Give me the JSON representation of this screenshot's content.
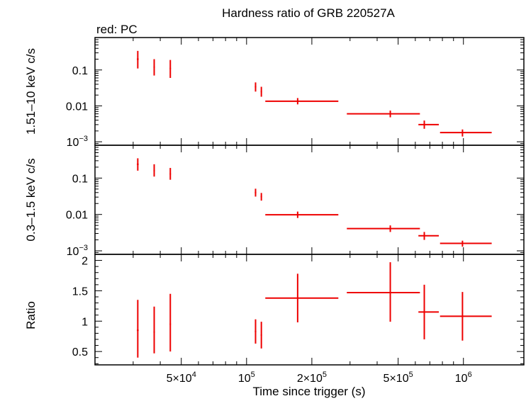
{
  "chart_data": {
    "type": "scatter",
    "title": "Hardness ratio of GRB 220527A",
    "subtitle": "red: PC",
    "xlabel": "Time since trigger (s)",
    "x_scale": "log",
    "xlim": [
      20000,
      1900000
    ],
    "x_ticks": [
      {
        "value": 50000,
        "base": "5×10",
        "exp": "4"
      },
      {
        "value": 100000,
        "base": "10",
        "exp": "5"
      },
      {
        "value": 200000,
        "base": "2×10",
        "exp": "5"
      },
      {
        "value": 500000,
        "base": "5×10",
        "exp": "5"
      },
      {
        "value": 1000000,
        "base": "10",
        "exp": "6"
      }
    ],
    "series_color": "#ee0000",
    "panels": [
      {
        "ylabel": "1.51–10 keV c/s",
        "y_scale": "log",
        "ylim": [
          0.0008,
          0.8
        ],
        "y_ticks": [
          {
            "value": 0.1,
            "label": "0.1"
          },
          {
            "value": 0.01,
            "label": "0.01"
          },
          {
            "value": 0.001,
            "label": "10",
            "exp": "−3"
          }
        ],
        "points": [
          {
            "x": 31500,
            "y": 0.2,
            "xerr": [
              300,
              300
            ],
            "yerr": [
              0.09,
              0.14
            ]
          },
          {
            "x": 37500,
            "y": 0.12,
            "xerr": [
              300,
              300
            ],
            "yerr": [
              0.05,
              0.08
            ]
          },
          {
            "x": 44500,
            "y": 0.11,
            "xerr": [
              300,
              300
            ],
            "yerr": [
              0.05,
              0.08
            ]
          },
          {
            "x": 110000,
            "y": 0.034,
            "xerr": [
              900,
              900
            ],
            "yerr": [
              0.009,
              0.011
            ]
          },
          {
            "x": 117000,
            "y": 0.025,
            "xerr": [
              800,
              800
            ],
            "yerr": [
              0.007,
              0.009
            ]
          },
          {
            "x": 172000,
            "y": 0.0135,
            "xerr": [
              50000,
              93000
            ],
            "yerr": [
              0.0025,
              0.003
            ]
          },
          {
            "x": 460000,
            "y": 0.006,
            "xerr": [
              170000,
              170000
            ],
            "yerr": [
              0.0012,
              0.0014
            ]
          },
          {
            "x": 660000,
            "y": 0.003,
            "xerr": [
              40000,
              110000
            ],
            "yerr": [
              0.0007,
              0.0009
            ]
          },
          {
            "x": 990000,
            "y": 0.0018,
            "xerr": [
              210000,
              360000
            ],
            "yerr": [
              0.0004,
              0.0004
            ]
          }
        ]
      },
      {
        "ylabel": "0.3–1.5 keV c/s",
        "y_scale": "log",
        "ylim": [
          0.0008,
          0.8
        ],
        "y_ticks": [
          {
            "value": 0.1,
            "label": "0.1"
          },
          {
            "value": 0.01,
            "label": "0.01"
          },
          {
            "value": 0.001,
            "label": "10",
            "exp": "−3"
          }
        ],
        "points": [
          {
            "x": 31500,
            "y": 0.24,
            "xerr": [
              300,
              300
            ],
            "yerr": [
              0.08,
              0.11
            ]
          },
          {
            "x": 37500,
            "y": 0.16,
            "xerr": [
              300,
              300
            ],
            "yerr": [
              0.05,
              0.08
            ]
          },
          {
            "x": 44500,
            "y": 0.13,
            "xerr": [
              300,
              300
            ],
            "yerr": [
              0.04,
              0.06
            ]
          },
          {
            "x": 110000,
            "y": 0.04,
            "xerr": [
              900,
              900
            ],
            "yerr": [
              0.009,
              0.011
            ]
          },
          {
            "x": 117000,
            "y": 0.031,
            "xerr": [
              800,
              800
            ],
            "yerr": [
              0.007,
              0.008
            ]
          },
          {
            "x": 172000,
            "y": 0.0098,
            "xerr": [
              50000,
              93000
            ],
            "yerr": [
              0.0018,
              0.0022
            ]
          },
          {
            "x": 460000,
            "y": 0.0041,
            "xerr": [
              170000,
              170000
            ],
            "yerr": [
              0.0008,
              0.0009
            ]
          },
          {
            "x": 660000,
            "y": 0.0026,
            "xerr": [
              40000,
              110000
            ],
            "yerr": [
              0.0006,
              0.0007
            ]
          },
          {
            "x": 990000,
            "y": 0.0016,
            "xerr": [
              210000,
              360000
            ],
            "yerr": [
              0.0003,
              0.0003
            ]
          }
        ]
      },
      {
        "ylabel": "Ratio",
        "y_scale": "linear",
        "ylim": [
          0.28,
          2.1
        ],
        "y_ticks": [
          {
            "value": 0.5,
            "label": "0.5"
          },
          {
            "value": 1,
            "label": "1"
          },
          {
            "value": 1.5,
            "label": "1.5"
          },
          {
            "value": 2,
            "label": "2"
          }
        ],
        "points": [
          {
            "x": 31500,
            "y": 0.85,
            "xerr": [
              300,
              300
            ],
            "yerr": [
              0.45,
              0.5
            ]
          },
          {
            "x": 37500,
            "y": 0.82,
            "xerr": [
              300,
              300
            ],
            "yerr": [
              0.35,
              0.42
            ]
          },
          {
            "x": 44500,
            "y": 0.95,
            "xerr": [
              300,
              300
            ],
            "yerr": [
              0.45,
              0.5
            ]
          },
          {
            "x": 110000,
            "y": 0.83,
            "xerr": [
              900,
              900
            ],
            "yerr": [
              0.2,
              0.2
            ]
          },
          {
            "x": 117000,
            "y": 0.77,
            "xerr": [
              800,
              800
            ],
            "yerr": [
              0.22,
              0.22
            ]
          },
          {
            "x": 172000,
            "y": 1.38,
            "xerr": [
              50000,
              93000
            ],
            "yerr": [
              0.4,
              0.4
            ]
          },
          {
            "x": 460000,
            "y": 1.47,
            "xerr": [
              170000,
              170000
            ],
            "yerr": [
              0.48,
              0.5
            ]
          },
          {
            "x": 660000,
            "y": 1.15,
            "xerr": [
              40000,
              110000
            ],
            "yerr": [
              0.45,
              0.45
            ]
          },
          {
            "x": 990000,
            "y": 1.08,
            "xerr": [
              210000,
              360000
            ],
            "yerr": [
              0.4,
              0.4
            ]
          }
        ]
      }
    ]
  }
}
